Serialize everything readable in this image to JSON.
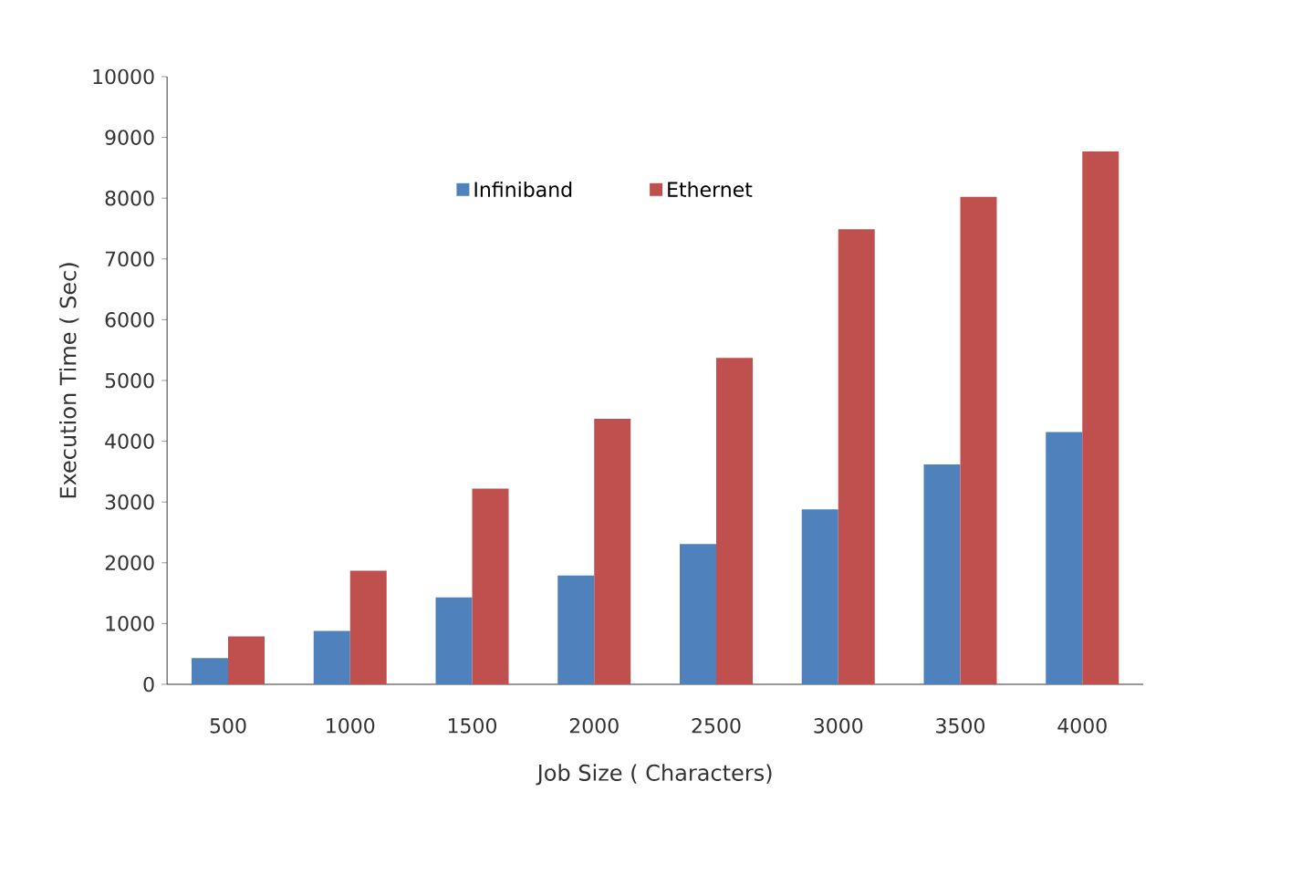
{
  "chart_data": {
    "type": "bar",
    "xlabel": "Job Size ( Characters)",
    "ylabel": "Execution Time ( Sec)",
    "categories": [
      "500",
      "1000",
      "1500",
      "2000",
      "2500",
      "3000",
      "3500",
      "4000"
    ],
    "series": [
      {
        "name": "Infiniband",
        "color": "#4f81bd",
        "values": [
          430,
          880,
          1430,
          1790,
          2310,
          2880,
          3620,
          4150
        ]
      },
      {
        "name": "Ethernet",
        "color": "#c0504d",
        "values": [
          790,
          1870,
          3220,
          4370,
          5370,
          7490,
          8020,
          8770
        ]
      }
    ],
    "ylim": [
      0,
      10000
    ],
    "yticks": [
      0,
      1000,
      2000,
      3000,
      4000,
      5000,
      6000,
      7000,
      8000,
      9000,
      10000
    ],
    "grid": false,
    "legend": "top"
  }
}
